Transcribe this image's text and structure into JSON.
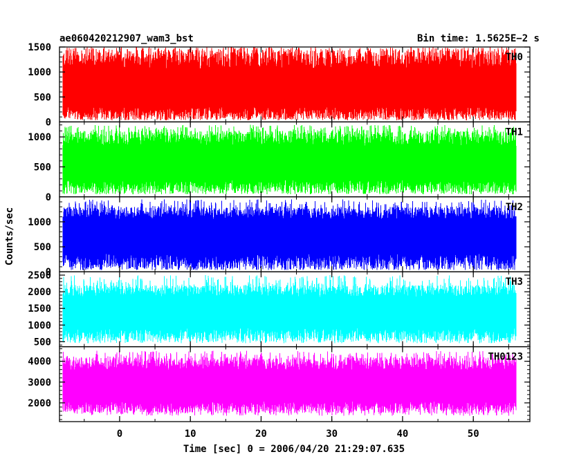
{
  "chart_data": {
    "type": "line",
    "title_left": "ae060420212907_wam3_bst",
    "title_right": "Bin time: 1.5625E−2 s",
    "xlabel": "Time [sec] 0 = 2006/04/20 21:29:07.635",
    "ylabel": "Counts/sec",
    "xlim": [
      -8.5,
      58
    ],
    "data_xrange": [
      -8,
      56
    ],
    "xticks": [
      0,
      10,
      20,
      30,
      40,
      50
    ],
    "grid": false,
    "panels": [
      {
        "name": "TH0",
        "color": "#ff0000",
        "ylim": [
          0,
          1500
        ],
        "yticks": [
          0,
          500,
          1000,
          1500
        ],
        "baseline": 50,
        "mean": 600,
        "peak": 1450,
        "max": 1500
      },
      {
        "name": "TH1",
        "color": "#00ff00",
        "ylim": [
          0,
          1250
        ],
        "yticks": [
          0,
          500,
          1000
        ],
        "baseline": 60,
        "mean": 550,
        "peak": 1100,
        "max": 1200
      },
      {
        "name": "TH2",
        "color": "#0000ff",
        "ylim": [
          0,
          1500
        ],
        "yticks": [
          0,
          500,
          1000
        ],
        "baseline": 50,
        "mean": 750,
        "peak": 1300,
        "max": 1450
      },
      {
        "name": "TH3",
        "color": "#00ffff",
        "ylim": [
          350,
          2600
        ],
        "yticks": [
          500,
          1000,
          1500,
          2000,
          2500
        ],
        "baseline": 500,
        "mean": 1400,
        "peak": 2200,
        "max": 2500
      },
      {
        "name": "TH0123",
        "color": "#ff00ff",
        "ylim": [
          1100,
          4700
        ],
        "yticks": [
          2000,
          3000,
          4000
        ],
        "baseline": 1500,
        "mean": 2800,
        "peak": 4200,
        "max": 4500
      }
    ]
  }
}
